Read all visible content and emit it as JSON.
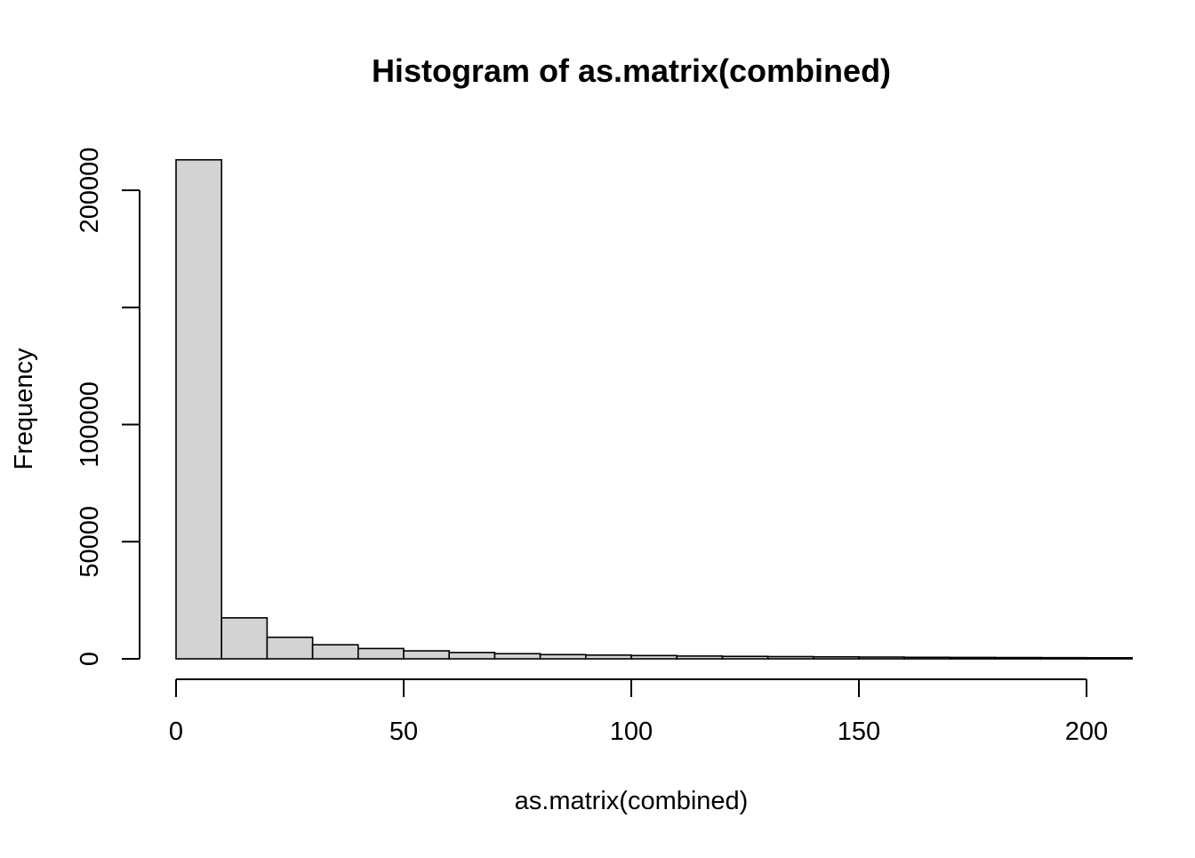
{
  "chart_data": {
    "type": "bar",
    "title": "Histogram of as.matrix(combined)",
    "xlabel": "as.matrix(combined)",
    "ylabel": "Frequency",
    "bin_width": 10,
    "bins": [
      {
        "x0": 0,
        "x1": 10,
        "count": 213000
      },
      {
        "x0": 10,
        "x1": 20,
        "count": 17500
      },
      {
        "x0": 20,
        "x1": 30,
        "count": 9200
      },
      {
        "x0": 30,
        "x1": 40,
        "count": 6000
      },
      {
        "x0": 40,
        "x1": 50,
        "count": 4400
      },
      {
        "x0": 50,
        "x1": 60,
        "count": 3400
      },
      {
        "x0": 60,
        "x1": 70,
        "count": 2700
      },
      {
        "x0": 70,
        "x1": 80,
        "count": 2200
      },
      {
        "x0": 80,
        "x1": 90,
        "count": 1800
      },
      {
        "x0": 90,
        "x1": 100,
        "count": 1600
      },
      {
        "x0": 100,
        "x1": 110,
        "count": 1400
      },
      {
        "x0": 110,
        "x1": 120,
        "count": 1200
      },
      {
        "x0": 120,
        "x1": 130,
        "count": 1050
      },
      {
        "x0": 130,
        "x1": 140,
        "count": 950
      },
      {
        "x0": 140,
        "x1": 150,
        "count": 850
      },
      {
        "x0": 150,
        "x1": 160,
        "count": 750
      },
      {
        "x0": 160,
        "x1": 170,
        "count": 650
      },
      {
        "x0": 170,
        "x1": 180,
        "count": 600
      },
      {
        "x0": 180,
        "x1": 190,
        "count": 550
      },
      {
        "x0": 190,
        "x1": 200,
        "count": 500
      },
      {
        "x0": 200,
        "x1": 210,
        "count": 450
      }
    ],
    "xlim": [
      0,
      210
    ],
    "ylim": [
      0,
      213000
    ],
    "x_ticks": [
      0,
      50,
      100,
      150,
      200
    ],
    "x_tick_labels": [
      "0",
      "50",
      "100",
      "150",
      "200"
    ],
    "y_ticks": [
      0,
      50000,
      100000,
      150000,
      200000
    ],
    "y_tick_labels": [
      "0",
      "50000",
      "100000",
      "",
      "200000"
    ],
    "bar_fill": "#d3d3d3",
    "bar_stroke": "#000000",
    "grid": false
  }
}
